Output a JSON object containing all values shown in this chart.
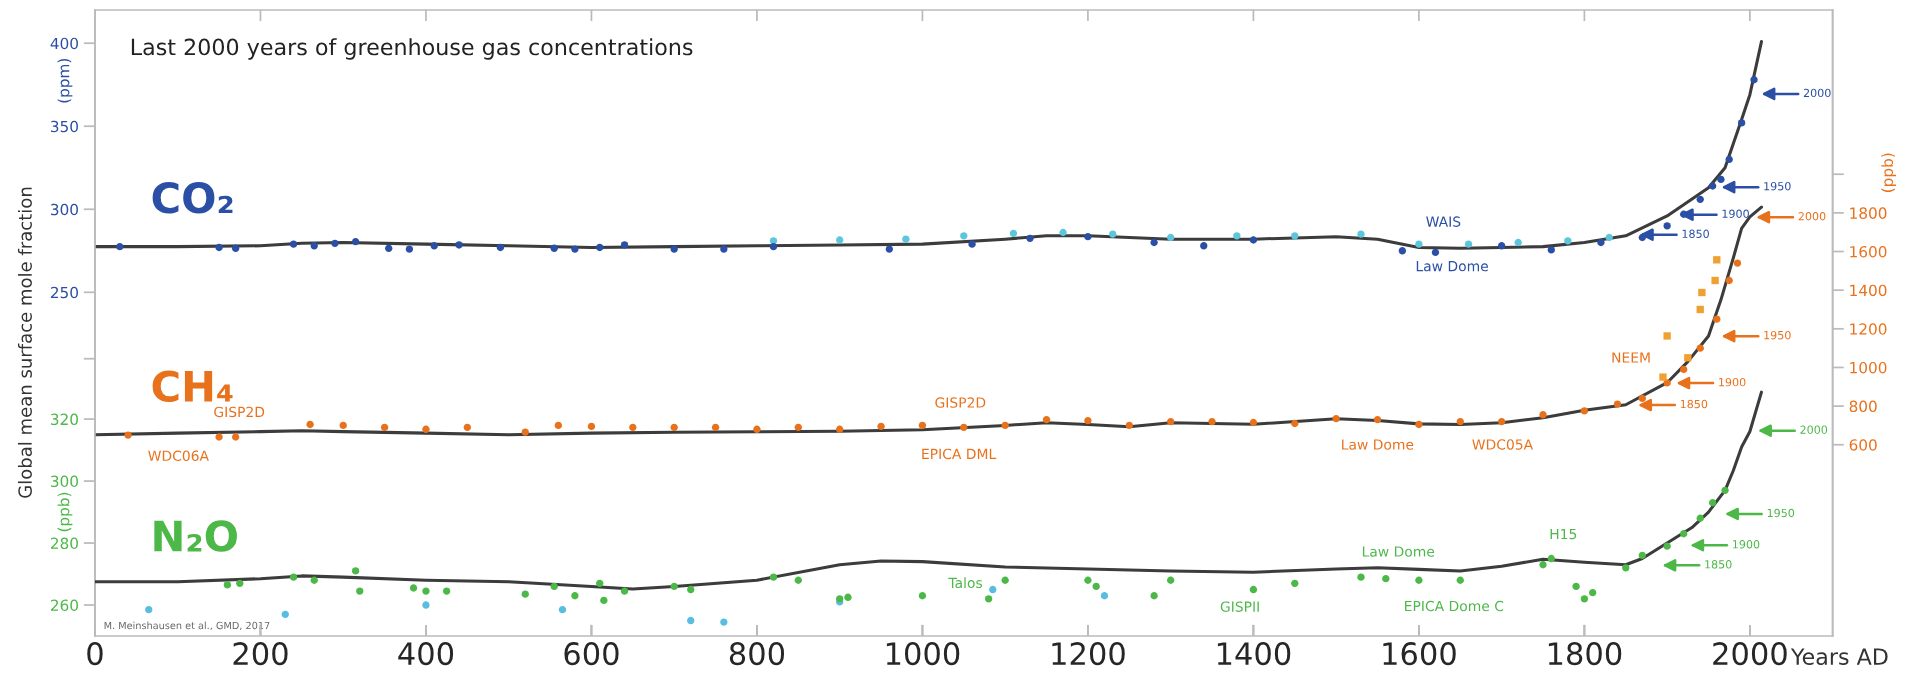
{
  "chart_data": [
    {
      "type": "line",
      "title": "Last 2000 years of greenhouse gas concentrations",
      "xlabel": "Years AD",
      "ylabel": "(ppm)",
      "xlim": [
        0,
        2100
      ],
      "xticks": [
        0,
        200,
        400,
        600,
        800,
        1000,
        1200,
        1400,
        1600,
        1800,
        2000
      ],
      "ylim": [
        43,
        420
      ],
      "yticks": [
        {
          "value": 210,
          "label": null
        },
        250,
        300,
        350,
        400
      ],
      "grid": false,
      "annotations": [
        "Global mean surface mole fraction",
        "M. Meinshausen et al., GMD, 2017",
        "WAIS",
        "Law Dome",
        "1850",
        "1900",
        "1950",
        "2000"
      ],
      "series": [
        {
          "type": "scatter",
          "marker": "circle",
          "color": "#5cc6dc",
          "x": [
            820,
            900,
            980,
            1050,
            1110,
            1170,
            1230,
            1300,
            1380,
            1450,
            1530,
            1600,
            1660,
            1720,
            1780,
            1830
          ],
          "values": [
            281,
            281.5,
            282,
            284,
            285.5,
            286,
            285,
            283,
            284,
            284,
            285,
            279,
            279,
            280,
            281,
            283
          ]
        },
        {
          "type": "scatter",
          "marker": "circle",
          "name": "CO₂",
          "color": "#2a4fa5",
          "x": [
            30,
            150,
            170,
            240,
            265,
            290,
            315,
            355,
            380,
            410,
            440,
            490,
            555,
            580,
            610,
            640,
            700,
            760,
            820,
            960,
            1060,
            1130,
            1200,
            1280,
            1340,
            1400,
            1580,
            1620,
            1700,
            1760,
            1820,
            1870,
            1900,
            1920,
            1940,
            1955,
            1965,
            1975,
            1990,
            2005
          ],
          "values": [
            277.5,
            277,
            276.5,
            279,
            278,
            279.5,
            280.5,
            276.5,
            276,
            278,
            278.5,
            277,
            276.5,
            276,
            277,
            278.5,
            276,
            276,
            277.5,
            276,
            279,
            282.5,
            283.5,
            280,
            278,
            281.5,
            275,
            274,
            278,
            275.5,
            280,
            283,
            290,
            297,
            306,
            314,
            318,
            330,
            352,
            378
          ]
        },
        {
          "line_style": "solid",
          "color": "#3c3c3c",
          "x": [
            0,
            100,
            200,
            250,
            300,
            400,
            500,
            600,
            700,
            800,
            900,
            1000,
            1100,
            1150,
            1200,
            1300,
            1400,
            1500,
            1550,
            1600,
            1650,
            1700,
            1750,
            1800,
            1850,
            1900,
            1950,
            1970,
            1990,
            2000,
            2014
          ],
          "values": [
            277.5,
            277.5,
            278,
            279.5,
            280,
            279,
            278,
            277,
            277.5,
            278,
            278.5,
            279,
            282,
            284,
            284,
            282,
            282,
            283.5,
            282,
            277,
            276.5,
            277,
            277.5,
            280,
            284,
            296,
            313,
            325,
            354,
            369,
            401
          ]
        }
      ]
    },
    {
      "type": "line",
      "y2label": "(ppb)",
      "xlim": [
        0,
        2100
      ],
      "xticks": [
        0,
        200,
        400,
        600,
        800,
        1000,
        1200,
        1400,
        1600,
        1800,
        2000
      ],
      "y2lim": [
        -390,
        2850
      ],
      "y2ticks": [
        600,
        800,
        1000,
        1200,
        1400,
        1600,
        1800,
        {
          "value": 2000,
          "label": null
        }
      ],
      "tick_labels": "y",
      "grid": false,
      "annotations": [
        "GISP2D",
        "WDC06A",
        "GISP2D",
        "EPICA DML",
        "Law Dome",
        "WDC05A",
        "NEEM",
        "1850",
        "1900",
        "1950",
        "2000"
      ],
      "series": [
        {
          "type": "scatter",
          "marker": "circle",
          "axis": "y2",
          "name": "CH₄",
          "color": "#e8711c",
          "x": [
            40,
            150,
            170,
            260,
            300,
            350,
            400,
            450,
            520,
            560,
            600,
            650,
            700,
            750,
            800,
            850,
            900,
            950,
            1000,
            1050,
            1100,
            1150,
            1200,
            1250,
            1300,
            1350,
            1400,
            1450,
            1500,
            1550,
            1600,
            1650,
            1700,
            1750,
            1800,
            1840,
            1870,
            1900,
            1920,
            1940,
            1960,
            1975,
            1985
          ],
          "values": [
            650,
            640,
            640,
            705,
            700,
            690,
            680,
            690,
            665,
            700,
            695,
            690,
            690,
            690,
            680,
            690,
            680,
            695,
            700,
            690,
            700,
            730,
            725,
            700,
            720,
            720,
            715,
            710,
            735,
            730,
            705,
            720,
            720,
            755,
            775,
            810,
            840,
            920,
            990,
            1100,
            1250,
            1450,
            1540
          ]
        },
        {
          "type": "scatter",
          "marker": "square",
          "axis": "y2",
          "color": "#f0a030",
          "x": [
            1895,
            1900,
            1925,
            1940,
            1942,
            1958,
            1960
          ],
          "values": [
            950,
            1163,
            1050,
            1300,
            1388,
            1450,
            1557
          ]
        },
        {
          "line_style": "solid",
          "axis": "y2",
          "color": "#3c3c3c",
          "x": [
            0,
            100,
            200,
            250,
            300,
            400,
            500,
            600,
            700,
            800,
            900,
            1000,
            1100,
            1150,
            1200,
            1250,
            1300,
            1400,
            1500,
            1550,
            1600,
            1650,
            1700,
            1750,
            1800,
            1850,
            1900,
            1925,
            1950,
            1965,
            1980,
            1990,
            2000,
            2014
          ],
          "values": [
            652,
            660,
            668,
            672,
            668,
            660,
            652,
            660,
            665,
            667,
            670,
            678,
            700,
            714,
            705,
            693,
            714,
            706,
            734,
            725,
            708,
            705,
            714,
            740,
            778,
            807,
            921,
            1030,
            1163,
            1350,
            1567,
            1720,
            1779,
            1830
          ]
        }
      ]
    },
    {
      "type": "line",
      "ylabel": "(ppb)",
      "xlim": [
        0,
        2100
      ],
      "xticks": [
        0,
        200,
        400,
        600,
        800,
        1000,
        1200,
        1400,
        1600,
        1800,
        2000
      ],
      "ylim": [
        250,
        452
      ],
      "yticks": [
        260,
        280,
        300,
        320
      ],
      "tick_labels": "y",
      "grid": false,
      "annotations": [
        "Talos",
        "GISPII",
        "Law Dome",
        "EPICA Dome C",
        "H15",
        "1850",
        "1900",
        "1950",
        "2000"
      ],
      "series": [
        {
          "type": "scatter",
          "marker": "circle",
          "color": "#59bde0",
          "x": [
            65,
            230,
            400,
            565,
            720,
            760,
            900,
            1085,
            1220
          ],
          "values": [
            258.5,
            257,
            260,
            258.5,
            255,
            254.5,
            261,
            265,
            263
          ]
        },
        {
          "type": "scatter",
          "marker": "circle",
          "name": "N₂O",
          "color": "#4cb848",
          "x": [
            160,
            175,
            240,
            265,
            315,
            320,
            385,
            400,
            425,
            520,
            555,
            580,
            610,
            615,
            640,
            700,
            720,
            820,
            850,
            900,
            910,
            1000,
            1080,
            1100,
            1200,
            1210,
            1280,
            1300,
            1400,
            1450,
            1530,
            1560,
            1600,
            1650,
            1750,
            1760,
            1790,
            1800,
            1810,
            1850,
            1870,
            1900,
            1920,
            1940,
            1955,
            1970
          ],
          "values": [
            266.5,
            267,
            269,
            268,
            271,
            264.5,
            265.5,
            264.5,
            264.5,
            263.5,
            266,
            263,
            267,
            261.5,
            264.5,
            266,
            265,
            269,
            268,
            262,
            262.5,
            263,
            262,
            268,
            268,
            266,
            263,
            268,
            265,
            267,
            269,
            268.5,
            268,
            268,
            273,
            275,
            266,
            262,
            264,
            272,
            276,
            279,
            283,
            288,
            293,
            297
          ]
        },
        {
          "line_style": "solid",
          "color": "#3c3c3c",
          "x": [
            0,
            100,
            200,
            250,
            300,
            400,
            500,
            600,
            650,
            700,
            800,
            900,
            950,
            1000,
            1100,
            1200,
            1300,
            1400,
            1500,
            1550,
            1600,
            1650,
            1700,
            1750,
            1800,
            1850,
            1870,
            1900,
            1930,
            1950,
            1970,
            1980,
            1990,
            2000,
            2014
          ],
          "values": [
            267.5,
            267.5,
            268.5,
            269.4,
            269,
            268,
            267.5,
            266,
            265.2,
            266,
            268,
            273,
            274.2,
            274,
            272.3,
            271.6,
            271,
            270.6,
            271.6,
            272,
            271.5,
            271,
            272.5,
            274.8,
            273.8,
            273,
            275,
            280,
            285,
            290,
            297,
            303.4,
            311,
            316,
            328.7
          ]
        }
      ]
    }
  ]
}
